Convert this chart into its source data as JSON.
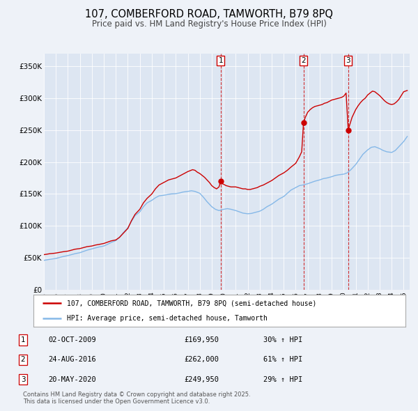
{
  "title": "107, COMBERFORD ROAD, TAMWORTH, B79 8PQ",
  "subtitle": "Price paid vs. HM Land Registry's House Price Index (HPI)",
  "title_fontsize": 10.5,
  "subtitle_fontsize": 8.5,
  "bg_color": "#eef2f8",
  "plot_bg_color": "#dde6f2",
  "red_line_color": "#cc0000",
  "blue_line_color": "#85b8e8",
  "ylim": [
    0,
    370000
  ],
  "xlim_start": 1995.0,
  "xlim_end": 2025.5,
  "yticks": [
    0,
    50000,
    100000,
    150000,
    200000,
    250000,
    300000,
    350000
  ],
  "ytick_labels": [
    "£0",
    "£50K",
    "£100K",
    "£150K",
    "£200K",
    "£250K",
    "£300K",
    "£350K"
  ],
  "sale_events": [
    {
      "num": 1,
      "date": "02-OCT-2009",
      "price": 169950,
      "pct": "30%",
      "x": 2009.75
    },
    {
      "num": 2,
      "date": "24-AUG-2016",
      "price": 262000,
      "pct": "61%",
      "x": 2016.65
    },
    {
      "num": 3,
      "date": "20-MAY-2020",
      "price": 249950,
      "pct": "29%",
      "x": 2020.38
    }
  ],
  "legend_label_red": "107, COMBERFORD ROAD, TAMWORTH, B79 8PQ (semi-detached house)",
  "legend_label_blue": "HPI: Average price, semi-detached house, Tamworth",
  "footer": "Contains HM Land Registry data © Crown copyright and database right 2025.\nThis data is licensed under the Open Government Licence v3.0.",
  "red_hpi_data": [
    [
      1995.0,
      55000
    ],
    [
      1995.2,
      55500
    ],
    [
      1995.5,
      56500
    ],
    [
      1995.8,
      57000
    ],
    [
      1996.0,
      57500
    ],
    [
      1996.3,
      58500
    ],
    [
      1996.6,
      59500
    ],
    [
      1997.0,
      60500
    ],
    [
      1997.3,
      62000
    ],
    [
      1997.6,
      63500
    ],
    [
      1998.0,
      64500
    ],
    [
      1998.3,
      66000
    ],
    [
      1998.6,
      67500
    ],
    [
      1999.0,
      68500
    ],
    [
      1999.3,
      70000
    ],
    [
      1999.6,
      71000
    ],
    [
      2000.0,
      72500
    ],
    [
      2000.3,
      74500
    ],
    [
      2000.6,
      76500
    ],
    [
      2001.0,
      78000
    ],
    [
      2001.3,
      82000
    ],
    [
      2001.6,
      88000
    ],
    [
      2002.0,
      96000
    ],
    [
      2002.3,
      108000
    ],
    [
      2002.6,
      118000
    ],
    [
      2003.0,
      126000
    ],
    [
      2003.3,
      136000
    ],
    [
      2003.6,
      143000
    ],
    [
      2004.0,
      150000
    ],
    [
      2004.3,
      158000
    ],
    [
      2004.6,
      164000
    ],
    [
      2005.0,
      168000
    ],
    [
      2005.2,
      170000
    ],
    [
      2005.4,
      172000
    ],
    [
      2005.6,
      173000
    ],
    [
      2005.8,
      174000
    ],
    [
      2006.0,
      175000
    ],
    [
      2006.2,
      177000
    ],
    [
      2006.4,
      179000
    ],
    [
      2006.6,
      181000
    ],
    [
      2006.8,
      183000
    ],
    [
      2007.0,
      185000
    ],
    [
      2007.2,
      186500
    ],
    [
      2007.4,
      188000
    ],
    [
      2007.6,
      187000
    ],
    [
      2007.8,
      184000
    ],
    [
      2008.0,
      182000
    ],
    [
      2008.2,
      179000
    ],
    [
      2008.4,
      176000
    ],
    [
      2008.6,
      172000
    ],
    [
      2008.8,
      168000
    ],
    [
      2009.0,
      163000
    ],
    [
      2009.2,
      160000
    ],
    [
      2009.4,
      158000
    ],
    [
      2009.6,
      161000
    ],
    [
      2009.75,
      169950
    ],
    [
      2009.8,
      167000
    ],
    [
      2010.0,
      165000
    ],
    [
      2010.2,
      163000
    ],
    [
      2010.4,
      162000
    ],
    [
      2010.6,
      161000
    ],
    [
      2010.8,
      161000
    ],
    [
      2011.0,
      161000
    ],
    [
      2011.2,
      160000
    ],
    [
      2011.4,
      159000
    ],
    [
      2011.6,
      158000
    ],
    [
      2011.8,
      158000
    ],
    [
      2012.0,
      157000
    ],
    [
      2012.2,
      157000
    ],
    [
      2012.4,
      158000
    ],
    [
      2012.6,
      159000
    ],
    [
      2012.8,
      160000
    ],
    [
      2013.0,
      162000
    ],
    [
      2013.3,
      164000
    ],
    [
      2013.6,
      167000
    ],
    [
      2014.0,
      171000
    ],
    [
      2014.3,
      175000
    ],
    [
      2014.6,
      179000
    ],
    [
      2015.0,
      183000
    ],
    [
      2015.3,
      187000
    ],
    [
      2015.6,
      192000
    ],
    [
      2016.0,
      198000
    ],
    [
      2016.3,
      208000
    ],
    [
      2016.5,
      216000
    ],
    [
      2016.65,
      262000
    ],
    [
      2016.8,
      270000
    ],
    [
      2017.0,
      278000
    ],
    [
      2017.2,
      282000
    ],
    [
      2017.4,
      285000
    ],
    [
      2017.6,
      287000
    ],
    [
      2017.8,
      288000
    ],
    [
      2018.0,
      289000
    ],
    [
      2018.2,
      290000
    ],
    [
      2018.4,
      292000
    ],
    [
      2018.6,
      293000
    ],
    [
      2018.8,
      295000
    ],
    [
      2019.0,
      297000
    ],
    [
      2019.2,
      298000
    ],
    [
      2019.4,
      299000
    ],
    [
      2019.6,
      300000
    ],
    [
      2019.8,
      301000
    ],
    [
      2020.0,
      303000
    ],
    [
      2020.2,
      308000
    ],
    [
      2020.38,
      249950
    ],
    [
      2020.5,
      258000
    ],
    [
      2020.7,
      270000
    ],
    [
      2021.0,
      282000
    ],
    [
      2021.2,
      288000
    ],
    [
      2021.4,
      293000
    ],
    [
      2021.6,
      297000
    ],
    [
      2021.8,
      300000
    ],
    [
      2022.0,
      305000
    ],
    [
      2022.2,
      308000
    ],
    [
      2022.4,
      311000
    ],
    [
      2022.6,
      310000
    ],
    [
      2022.8,
      307000
    ],
    [
      2023.0,
      304000
    ],
    [
      2023.2,
      300000
    ],
    [
      2023.4,
      296000
    ],
    [
      2023.6,
      293000
    ],
    [
      2023.8,
      291000
    ],
    [
      2024.0,
      290000
    ],
    [
      2024.2,
      291000
    ],
    [
      2024.4,
      294000
    ],
    [
      2024.6,
      298000
    ],
    [
      2024.8,
      304000
    ],
    [
      2025.0,
      310000
    ],
    [
      2025.3,
      312000
    ]
  ],
  "blue_hpi_data": [
    [
      1995.0,
      46000
    ],
    [
      1995.3,
      47000
    ],
    [
      1995.6,
      48000
    ],
    [
      1996.0,
      49000
    ],
    [
      1996.3,
      50500
    ],
    [
      1996.6,
      52000
    ],
    [
      1997.0,
      53500
    ],
    [
      1997.3,
      55000
    ],
    [
      1997.6,
      56500
    ],
    [
      1998.0,
      58000
    ],
    [
      1998.3,
      60000
    ],
    [
      1998.6,
      62000
    ],
    [
      1999.0,
      64000
    ],
    [
      1999.3,
      65500
    ],
    [
      1999.6,
      67000
    ],
    [
      2000.0,
      68500
    ],
    [
      2000.3,
      71000
    ],
    [
      2000.6,
      74000
    ],
    [
      2001.0,
      77000
    ],
    [
      2001.3,
      82000
    ],
    [
      2001.6,
      89000
    ],
    [
      2002.0,
      97000
    ],
    [
      2002.3,
      107000
    ],
    [
      2002.6,
      116000
    ],
    [
      2003.0,
      122000
    ],
    [
      2003.3,
      130000
    ],
    [
      2003.6,
      136000
    ],
    [
      2004.0,
      140000
    ],
    [
      2004.3,
      144000
    ],
    [
      2004.6,
      147000
    ],
    [
      2005.0,
      148000
    ],
    [
      2005.3,
      149000
    ],
    [
      2005.6,
      150000
    ],
    [
      2006.0,
      150500
    ],
    [
      2006.3,
      151500
    ],
    [
      2006.6,
      153000
    ],
    [
      2007.0,
      154000
    ],
    [
      2007.3,
      155000
    ],
    [
      2007.6,
      154000
    ],
    [
      2008.0,
      151000
    ],
    [
      2008.3,
      145000
    ],
    [
      2008.6,
      138000
    ],
    [
      2009.0,
      130000
    ],
    [
      2009.3,
      126000
    ],
    [
      2009.6,
      124000
    ],
    [
      2010.0,
      126000
    ],
    [
      2010.3,
      127000
    ],
    [
      2010.6,
      126000
    ],
    [
      2011.0,
      124000
    ],
    [
      2011.3,
      122000
    ],
    [
      2011.6,
      120000
    ],
    [
      2012.0,
      119000
    ],
    [
      2012.3,
      119500
    ],
    [
      2012.6,
      121000
    ],
    [
      2013.0,
      123000
    ],
    [
      2013.3,
      126000
    ],
    [
      2013.6,
      130000
    ],
    [
      2014.0,
      134000
    ],
    [
      2014.3,
      138000
    ],
    [
      2014.6,
      142000
    ],
    [
      2015.0,
      146000
    ],
    [
      2015.3,
      151000
    ],
    [
      2015.6,
      156000
    ],
    [
      2016.0,
      160000
    ],
    [
      2016.3,
      163000
    ],
    [
      2016.6,
      164000
    ],
    [
      2017.0,
      166000
    ],
    [
      2017.3,
      168000
    ],
    [
      2017.6,
      170000
    ],
    [
      2018.0,
      172000
    ],
    [
      2018.3,
      174000
    ],
    [
      2018.6,
      175000
    ],
    [
      2019.0,
      177000
    ],
    [
      2019.3,
      179000
    ],
    [
      2019.6,
      180000
    ],
    [
      2020.0,
      181000
    ],
    [
      2020.3,
      183000
    ],
    [
      2020.6,
      188000
    ],
    [
      2021.0,
      196000
    ],
    [
      2021.3,
      204000
    ],
    [
      2021.6,
      212000
    ],
    [
      2022.0,
      219000
    ],
    [
      2022.3,
      223000
    ],
    [
      2022.6,
      224000
    ],
    [
      2023.0,
      221000
    ],
    [
      2023.3,
      218000
    ],
    [
      2023.6,
      216000
    ],
    [
      2024.0,
      215000
    ],
    [
      2024.3,
      218000
    ],
    [
      2024.6,
      224000
    ],
    [
      2025.0,
      232000
    ],
    [
      2025.3,
      240000
    ]
  ]
}
